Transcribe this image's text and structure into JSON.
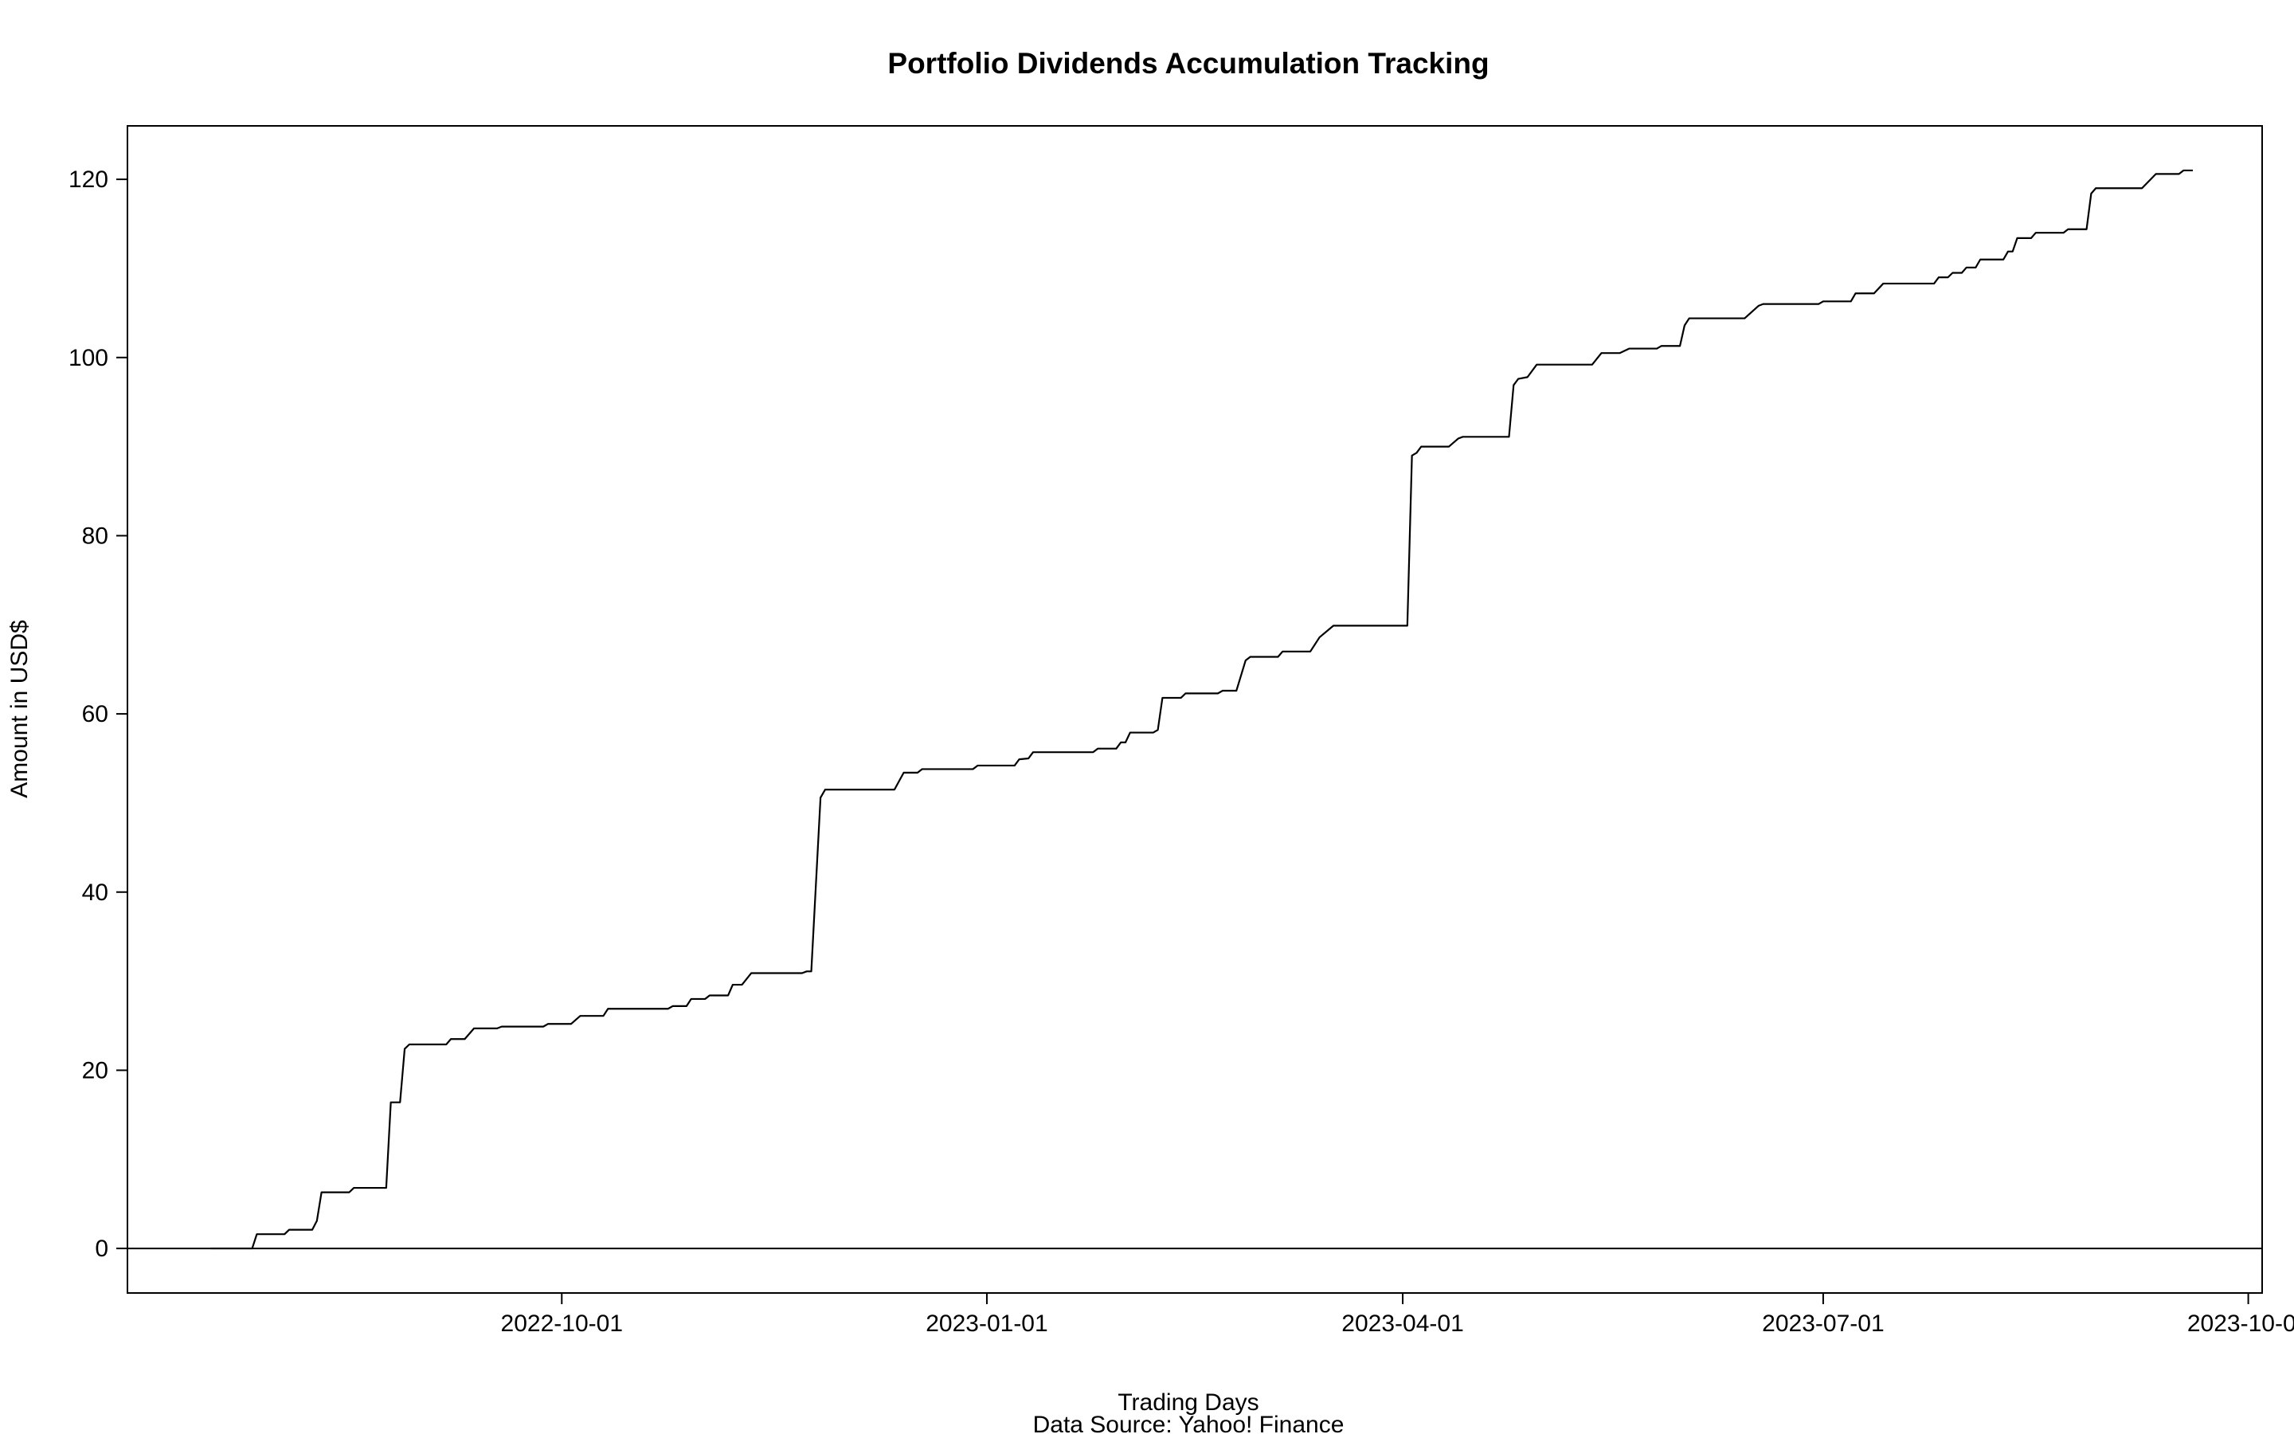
{
  "chart_data": {
    "type": "line",
    "title": "Portfolio Dividends Accumulation Tracking",
    "xlabel": "Trading Days",
    "ylabel": "Amount in USD$",
    "caption": "Data Source: Yahoo! Finance",
    "xlim": [
      "2022-06-29",
      "2023-10-04"
    ],
    "ylim": [
      -5,
      126
    ],
    "x_ticks": [
      "2022-10-01",
      "2023-01-01",
      "2023-04-01",
      "2023-07-01",
      "2023-10-01"
    ],
    "y_ticks": [
      0,
      20,
      40,
      60,
      80,
      100,
      120
    ],
    "reference_line_y": 0,
    "grid": false,
    "legend": "none",
    "line_color": "#000000",
    "series": [
      {
        "step": true,
        "points": [
          [
            "2022-07-17",
            0
          ],
          [
            "2022-07-26",
            0
          ],
          [
            "2022-07-27",
            1.6
          ],
          [
            "2022-08-02",
            1.6
          ],
          [
            "2022-08-03",
            2.1
          ],
          [
            "2022-08-08",
            2.1
          ],
          [
            "2022-08-09",
            3.1
          ],
          [
            "2022-08-10",
            6.3
          ],
          [
            "2022-08-16",
            6.3
          ],
          [
            "2022-08-17",
            6.8
          ],
          [
            "2022-08-24",
            6.8
          ],
          [
            "2022-08-25",
            16.4
          ],
          [
            "2022-08-27",
            16.4
          ],
          [
            "2022-08-28",
            22.4
          ],
          [
            "2022-08-29",
            22.9
          ],
          [
            "2022-09-06",
            22.9
          ],
          [
            "2022-09-07",
            23.5
          ],
          [
            "2022-09-10",
            23.5
          ],
          [
            "2022-09-12",
            24.7
          ],
          [
            "2022-09-17",
            24.7
          ],
          [
            "2022-09-18",
            24.9
          ],
          [
            "2022-09-27",
            24.9
          ],
          [
            "2022-09-28",
            25.2
          ],
          [
            "2022-10-03",
            25.2
          ],
          [
            "2022-10-05",
            26.1
          ],
          [
            "2022-10-10",
            26.1
          ],
          [
            "2022-10-11",
            26.9
          ],
          [
            "2022-10-24",
            26.9
          ],
          [
            "2022-10-25",
            27.2
          ],
          [
            "2022-10-28",
            27.2
          ],
          [
            "2022-10-29",
            28.0
          ],
          [
            "2022-11-01",
            28.0
          ],
          [
            "2022-11-02",
            28.4
          ],
          [
            "2022-11-06",
            28.4
          ],
          [
            "2022-11-07",
            29.6
          ],
          [
            "2022-11-09",
            29.6
          ],
          [
            "2022-11-11",
            30.9
          ],
          [
            "2022-11-22",
            30.9
          ],
          [
            "2022-11-23",
            31.1
          ],
          [
            "2022-11-24",
            31.1
          ],
          [
            "2022-11-26",
            50.6
          ],
          [
            "2022-11-27",
            51.5
          ],
          [
            "2022-12-12",
            51.5
          ],
          [
            "2022-12-14",
            53.4
          ],
          [
            "2022-12-17",
            53.4
          ],
          [
            "2022-12-18",
            53.8
          ],
          [
            "2022-12-29",
            53.8
          ],
          [
            "2022-12-30",
            54.2
          ],
          [
            "2023-01-07",
            54.2
          ],
          [
            "2023-01-08",
            54.9
          ],
          [
            "2023-01-10",
            55.0
          ],
          [
            "2023-01-11",
            55.7
          ],
          [
            "2023-01-24",
            55.7
          ],
          [
            "2023-01-25",
            56.1
          ],
          [
            "2023-01-29",
            56.1
          ],
          [
            "2023-01-30",
            56.8
          ],
          [
            "2023-01-31",
            56.8
          ],
          [
            "2023-02-01",
            57.9
          ],
          [
            "2023-02-06",
            57.9
          ],
          [
            "2023-02-07",
            58.2
          ],
          [
            "2023-02-08",
            61.8
          ],
          [
            "2023-02-12",
            61.8
          ],
          [
            "2023-02-13",
            62.3
          ],
          [
            "2023-02-20",
            62.3
          ],
          [
            "2023-02-21",
            62.6
          ],
          [
            "2023-02-24",
            62.6
          ],
          [
            "2023-02-26",
            66.0
          ],
          [
            "2023-02-27",
            66.4
          ],
          [
            "2023-03-05",
            66.4
          ],
          [
            "2023-03-06",
            67.0
          ],
          [
            "2023-03-12",
            67.0
          ],
          [
            "2023-03-14",
            68.6
          ],
          [
            "2023-03-17",
            69.9
          ],
          [
            "2023-04-02",
            69.9
          ],
          [
            "2023-04-03",
            89.0
          ],
          [
            "2023-04-04",
            89.3
          ],
          [
            "2023-04-05",
            90.0
          ],
          [
            "2023-04-11",
            90.0
          ],
          [
            "2023-04-13",
            90.9
          ],
          [
            "2023-04-14",
            91.1
          ],
          [
            "2023-04-24",
            91.1
          ],
          [
            "2023-04-25",
            96.9
          ],
          [
            "2023-04-26",
            97.6
          ],
          [
            "2023-04-28",
            97.8
          ],
          [
            "2023-04-30",
            99.2
          ],
          [
            "2023-05-12",
            99.2
          ],
          [
            "2023-05-14",
            100.5
          ],
          [
            "2023-05-18",
            100.5
          ],
          [
            "2023-05-20",
            101.0
          ],
          [
            "2023-05-26",
            101.0
          ],
          [
            "2023-05-27",
            101.3
          ],
          [
            "2023-05-31",
            101.3
          ],
          [
            "2023-06-01",
            103.6
          ],
          [
            "2023-06-02",
            104.4
          ],
          [
            "2023-06-14",
            104.4
          ],
          [
            "2023-06-17",
            105.8
          ],
          [
            "2023-06-18",
            106.0
          ],
          [
            "2023-06-30",
            106.0
          ],
          [
            "2023-07-01",
            106.3
          ],
          [
            "2023-07-07",
            106.3
          ],
          [
            "2023-07-08",
            107.2
          ],
          [
            "2023-07-12",
            107.2
          ],
          [
            "2023-07-14",
            108.3
          ],
          [
            "2023-07-25",
            108.3
          ],
          [
            "2023-07-26",
            109.0
          ],
          [
            "2023-07-28",
            109.0
          ],
          [
            "2023-07-29",
            109.5
          ],
          [
            "2023-07-31",
            109.5
          ],
          [
            "2023-08-01",
            110.1
          ],
          [
            "2023-08-03",
            110.1
          ],
          [
            "2023-08-04",
            111.0
          ],
          [
            "2023-08-09",
            111.0
          ],
          [
            "2023-08-10",
            111.9
          ],
          [
            "2023-08-11",
            111.9
          ],
          [
            "2023-08-12",
            113.4
          ],
          [
            "2023-08-15",
            113.4
          ],
          [
            "2023-08-16",
            114.0
          ],
          [
            "2023-08-22",
            114.0
          ],
          [
            "2023-08-23",
            114.4
          ],
          [
            "2023-08-27",
            114.4
          ],
          [
            "2023-08-28",
            118.4
          ],
          [
            "2023-08-29",
            119.0
          ],
          [
            "2023-09-08",
            119.0
          ],
          [
            "2023-09-11",
            120.6
          ],
          [
            "2023-09-16",
            120.6
          ],
          [
            "2023-09-17",
            121.0
          ],
          [
            "2023-09-19",
            121.0
          ]
        ]
      }
    ]
  }
}
